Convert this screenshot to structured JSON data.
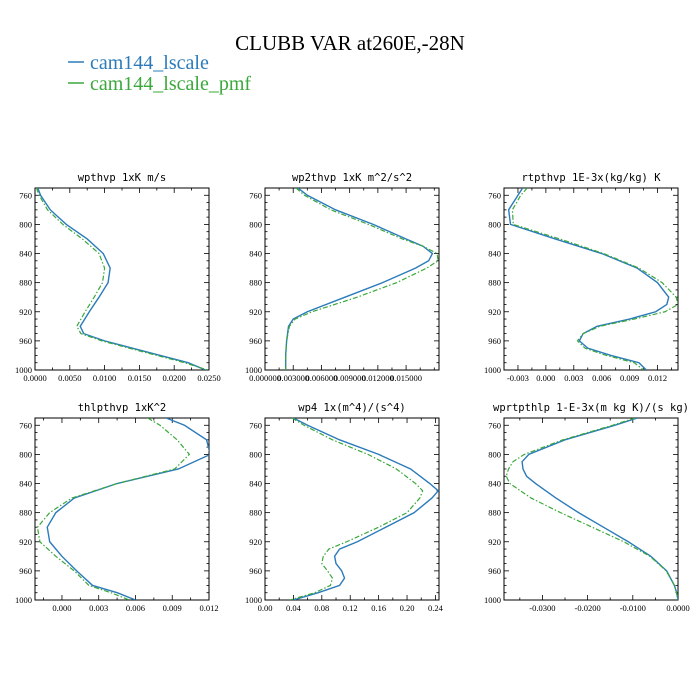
{
  "title": "CLUBB VAR at260E,-28N",
  "legend": [
    {
      "label": "cam144_lscale",
      "color": "#2b7bba"
    },
    {
      "label": "cam144_lscale_pmf",
      "color": "#3aa83a"
    }
  ],
  "chart_data": [
    {
      "type": "line",
      "title": "wpthvp  1xK m/s",
      "xlim": [
        0.0,
        0.025
      ],
      "ylim": [
        1000,
        750
      ],
      "xticks": [
        0.0,
        0.005,
        0.01,
        0.015,
        0.02,
        0.025
      ],
      "xtick_labels": [
        "0.0000",
        "0.0050",
        "0.0100",
        "0.0150",
        "0.0200",
        "0.0250"
      ],
      "yticks": [
        760,
        800,
        840,
        880,
        920,
        960,
        1000
      ],
      "ytick_labels": [
        "760",
        "800",
        "840",
        "880",
        "920",
        "960",
        "1000"
      ],
      "y": [
        750,
        760,
        780,
        800,
        820,
        840,
        860,
        880,
        900,
        920,
        940,
        950,
        960,
        970,
        980,
        990,
        1000
      ],
      "series": [
        {
          "name": "cam144_lscale",
          "x": [
            0.0004,
            0.0008,
            0.0022,
            0.0045,
            0.0075,
            0.0098,
            0.0108,
            0.0105,
            0.0092,
            0.0078,
            0.0065,
            0.007,
            0.01,
            0.014,
            0.018,
            0.022,
            0.0245
          ]
        },
        {
          "name": "cam144_lscale_pmf",
          "x": [
            0.0002,
            0.0006,
            0.0018,
            0.004,
            0.0068,
            0.0092,
            0.01,
            0.0097,
            0.0085,
            0.0072,
            0.006,
            0.0066,
            0.0096,
            0.0135,
            0.0175,
            0.0215,
            0.0248
          ]
        }
      ]
    },
    {
      "type": "line",
      "title": "wp2thvp  1xK m^2/s^2",
      "xlim": [
        0.0,
        0.0185
      ],
      "ylim": [
        1000,
        750
      ],
      "xticks": [
        0.0,
        0.003,
        0.006,
        0.009,
        0.012,
        0.015
      ],
      "xtick_labels": [
        "0.000000",
        "0.003000",
        "0.006000",
        "0.009000",
        "0.012000",
        "0.015000"
      ],
      "yticks": [
        760,
        800,
        840,
        880,
        920,
        960,
        1000
      ],
      "ytick_labels": [
        "760",
        "800",
        "840",
        "880",
        "920",
        "960",
        "1000"
      ],
      "y": [
        750,
        760,
        780,
        800,
        820,
        830,
        840,
        850,
        860,
        880,
        900,
        920,
        930,
        940,
        960,
        980,
        1000
      ],
      "series": [
        {
          "name": "cam144_lscale",
          "x": [
            0.0035,
            0.0045,
            0.0075,
            0.0115,
            0.015,
            0.0168,
            0.0178,
            0.0174,
            0.016,
            0.0125,
            0.0085,
            0.0045,
            0.003,
            0.0025,
            0.0023,
            0.0022,
            0.0022
          ]
        },
        {
          "name": "cam144_lscale_pmf",
          "x": [
            0.0033,
            0.0042,
            0.007,
            0.011,
            0.0146,
            0.0168,
            0.0183,
            0.0184,
            0.0172,
            0.014,
            0.0098,
            0.005,
            0.0032,
            0.0026,
            0.0023,
            0.0022,
            0.0022
          ]
        }
      ]
    },
    {
      "type": "line",
      "title": "rtpthvp  1E-3x(kg/kg) K",
      "xlim": [
        -0.0045,
        0.0142
      ],
      "ylim": [
        1000,
        750
      ],
      "xticks": [
        -0.003,
        0.0,
        0.003,
        0.006,
        0.009,
        0.012
      ],
      "xtick_labels": [
        "-0.003",
        "0.000",
        "0.003",
        "0.006",
        "0.009",
        "0.012"
      ],
      "yticks": [
        760,
        800,
        840,
        880,
        920,
        960,
        1000
      ],
      "ytick_labels": [
        "760",
        "800",
        "840",
        "880",
        "920",
        "960",
        "1000"
      ],
      "y": [
        750,
        760,
        780,
        800,
        820,
        840,
        860,
        880,
        900,
        910,
        920,
        930,
        940,
        950,
        960,
        970,
        980,
        990,
        1000
      ],
      "series": [
        {
          "name": "cam144_lscale",
          "x": [
            -0.0025,
            -0.003,
            -0.004,
            -0.0038,
            0.001,
            0.006,
            0.0098,
            0.012,
            0.0132,
            0.013,
            0.0118,
            0.009,
            0.0055,
            0.004,
            0.0036,
            0.0045,
            0.007,
            0.01,
            0.0108
          ]
        },
        {
          "name": "cam144_lscale_pmf",
          "x": [
            -0.002,
            -0.0027,
            -0.0036,
            -0.0035,
            0.0015,
            0.0062,
            0.01,
            0.0125,
            0.014,
            0.0142,
            0.0128,
            0.0095,
            0.0058,
            0.004,
            0.0034,
            0.0042,
            0.0065,
            0.0095,
            0.0105
          ]
        }
      ]
    },
    {
      "type": "line",
      "title": "thlpthvp  1xK^2",
      "xlim": [
        -0.0022,
        0.012
      ],
      "ylim": [
        1000,
        750
      ],
      "xticks": [
        0.0,
        0.003,
        0.006,
        0.009,
        0.012
      ],
      "xtick_labels": [
        "0.000",
        "0.003",
        "0.006",
        "0.009",
        "0.012"
      ],
      "yticks": [
        760,
        800,
        840,
        880,
        920,
        960,
        1000
      ],
      "ytick_labels": [
        "760",
        "800",
        "840",
        "880",
        "920",
        "960",
        "1000"
      ],
      "y": [
        750,
        760,
        780,
        800,
        820,
        840,
        860,
        880,
        900,
        920,
        940,
        960,
        980,
        990,
        1000
      ],
      "series": [
        {
          "name": "cam144_lscale",
          "x": [
            0.0085,
            0.01,
            0.0118,
            0.0121,
            0.0095,
            0.0045,
            0.001,
            -0.0005,
            -0.0012,
            -0.001,
            0.0,
            0.0012,
            0.0025,
            0.0045,
            0.006
          ]
        },
        {
          "name": "cam144_lscale_pmf",
          "x": [
            0.007,
            0.008,
            0.0094,
            0.0104,
            0.0092,
            0.0045,
            0.0008,
            -0.001,
            -0.002,
            -0.0018,
            -0.0005,
            0.001,
            0.0022,
            0.004,
            0.0055
          ]
        }
      ]
    },
    {
      "type": "line",
      "title": "wp4  1x(m^4)/(s^4)",
      "xlim": [
        0.0,
        0.245
      ],
      "ylim": [
        1000,
        750
      ],
      "xticks": [
        0.0,
        0.04,
        0.08,
        0.12,
        0.16,
        0.2,
        0.24
      ],
      "xtick_labels": [
        "0.00",
        "0.04",
        "0.08",
        "0.12",
        "0.16",
        "0.20",
        "0.24"
      ],
      "yticks": [
        760,
        800,
        840,
        880,
        920,
        960,
        1000
      ],
      "ytick_labels": [
        "760",
        "800",
        "840",
        "880",
        "920",
        "960",
        "1000"
      ],
      "y": [
        750,
        760,
        780,
        800,
        820,
        840,
        850,
        860,
        880,
        900,
        920,
        930,
        940,
        950,
        960,
        970,
        980,
        990,
        1000
      ],
      "series": [
        {
          "name": "cam144_lscale",
          "x": [
            0.04,
            0.06,
            0.105,
            0.16,
            0.205,
            0.232,
            0.244,
            0.235,
            0.21,
            0.17,
            0.13,
            0.105,
            0.098,
            0.1,
            0.108,
            0.112,
            0.105,
            0.075,
            0.04
          ]
        },
        {
          "name": "cam144_lscale_pmf",
          "x": [
            0.038,
            0.055,
            0.095,
            0.145,
            0.185,
            0.212,
            0.222,
            0.218,
            0.2,
            0.16,
            0.115,
            0.09,
            0.082,
            0.08,
            0.088,
            0.095,
            0.092,
            0.07,
            0.035
          ]
        }
      ]
    },
    {
      "type": "line",
      "title": "wprtpthlp  1-E-3x(m kg K)/(s kg)",
      "xlim": [
        -0.0385,
        0.0
      ],
      "ylim": [
        1000,
        750
      ],
      "xticks": [
        -0.03,
        -0.02,
        -0.01,
        0.0
      ],
      "xtick_labels": [
        "-0.0300",
        "-0.0200",
        "-0.0100",
        "0.0000"
      ],
      "yticks": [
        760,
        800,
        840,
        880,
        920,
        960,
        1000
      ],
      "ytick_labels": [
        "760",
        "800",
        "840",
        "880",
        "920",
        "960",
        "1000"
      ],
      "y": [
        750,
        760,
        780,
        800,
        810,
        820,
        830,
        840,
        860,
        880,
        900,
        920,
        940,
        960,
        980,
        990,
        1000
      ],
      "series": [
        {
          "name": "cam144_lscale",
          "x": [
            -0.009,
            -0.014,
            -0.025,
            -0.033,
            -0.0345,
            -0.0343,
            -0.0335,
            -0.0315,
            -0.027,
            -0.022,
            -0.0165,
            -0.011,
            -0.006,
            -0.0025,
            -0.0008,
            -0.0003,
            0.0
          ]
        },
        {
          "name": "cam144_lscale_pmf",
          "x": [
            -0.0095,
            -0.0145,
            -0.0255,
            -0.034,
            -0.0365,
            -0.0375,
            -0.038,
            -0.0372,
            -0.0325,
            -0.026,
            -0.019,
            -0.012,
            -0.0062,
            -0.0026,
            -0.0008,
            -0.0003,
            0.0
          ]
        }
      ]
    }
  ]
}
